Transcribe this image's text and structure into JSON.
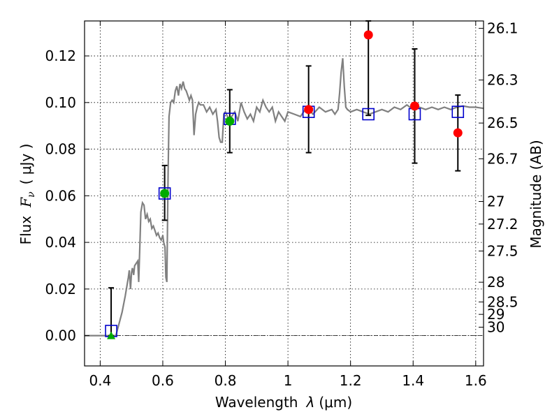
{
  "chart_data": {
    "type": "scatter",
    "xlabel_text": "Wavelength",
    "xlabel_symbol": "λ",
    "xlabel_unit": "(μm)",
    "ylabel_text": "Flux",
    "ylabel_symbol": "F",
    "ylabel_sub": "ν",
    "ylabel_unit": "( μJy )",
    "y2label": "Magnitude (AB)",
    "xlim": [
      0.35,
      1.625
    ],
    "ylim": [
      -0.013,
      0.135
    ],
    "grid": true,
    "x_ticks": [
      {
        "v": 0.4,
        "label": "0.4"
      },
      {
        "v": 0.6,
        "label": "0.6"
      },
      {
        "v": 0.8,
        "label": "0.8"
      },
      {
        "v": 1.0,
        "label": "1"
      },
      {
        "v": 1.2,
        "label": "1.2"
      },
      {
        "v": 1.4,
        "label": "1.4"
      },
      {
        "v": 1.6,
        "label": "1.6"
      }
    ],
    "y_ticks": [
      {
        "v": 0.0,
        "label": "0.00"
      },
      {
        "v": 0.02,
        "label": "0.02"
      },
      {
        "v": 0.04,
        "label": "0.04"
      },
      {
        "v": 0.06,
        "label": "0.06"
      },
      {
        "v": 0.08,
        "label": "0.08"
      },
      {
        "v": 0.1,
        "label": "0.10"
      },
      {
        "v": 0.12,
        "label": "0.12"
      }
    ],
    "mag_ticks": [
      {
        "mag": 26.1,
        "label": "26.1"
      },
      {
        "mag": 26.3,
        "label": "26.3"
      },
      {
        "mag": 26.5,
        "label": "26.5"
      },
      {
        "mag": 26.7,
        "label": "26.7"
      },
      {
        "mag": 27.0,
        "label": "27"
      },
      {
        "mag": 27.2,
        "label": "27.2"
      },
      {
        "mag": 27.5,
        "label": "27.5"
      },
      {
        "mag": 28.0,
        "label": "28"
      },
      {
        "mag": 28.5,
        "label": "28.5"
      },
      {
        "mag": 29.0,
        "label": "29"
      },
      {
        "mag": 30.0,
        "label": "30"
      }
    ],
    "model_spectrum": {
      "color": "#808080",
      "points": [
        [
          0.35,
          0.0
        ],
        [
          0.44,
          0.0
        ],
        [
          0.45,
          0.0
        ],
        [
          0.47,
          0.01
        ],
        [
          0.48,
          0.017
        ],
        [
          0.49,
          0.025
        ],
        [
          0.493,
          0.028
        ],
        [
          0.497,
          0.02
        ],
        [
          0.5,
          0.027
        ],
        [
          0.503,
          0.029
        ],
        [
          0.507,
          0.026
        ],
        [
          0.51,
          0.03
        ],
        [
          0.515,
          0.031
        ],
        [
          0.52,
          0.032
        ],
        [
          0.523,
          0.023
        ],
        [
          0.527,
          0.04
        ],
        [
          0.53,
          0.053
        ],
        [
          0.535,
          0.057
        ],
        [
          0.54,
          0.056
        ],
        [
          0.545,
          0.05
        ],
        [
          0.55,
          0.052
        ],
        [
          0.555,
          0.049
        ],
        [
          0.56,
          0.05
        ],
        [
          0.565,
          0.046
        ],
        [
          0.57,
          0.047
        ],
        [
          0.575,
          0.045
        ],
        [
          0.58,
          0.043
        ],
        [
          0.585,
          0.044
        ],
        [
          0.59,
          0.042
        ],
        [
          0.595,
          0.041
        ],
        [
          0.6,
          0.043
        ],
        [
          0.603,
          0.04
        ],
        [
          0.607,
          0.038
        ],
        [
          0.61,
          0.025
        ],
        [
          0.613,
          0.023
        ],
        [
          0.617,
          0.07
        ],
        [
          0.62,
          0.094
        ],
        [
          0.625,
          0.1
        ],
        [
          0.63,
          0.101
        ],
        [
          0.635,
          0.1
        ],
        [
          0.64,
          0.105
        ],
        [
          0.645,
          0.107
        ],
        [
          0.65,
          0.103
        ],
        [
          0.655,
          0.108
        ],
        [
          0.66,
          0.106
        ],
        [
          0.665,
          0.109
        ],
        [
          0.67,
          0.106
        ],
        [
          0.675,
          0.105
        ],
        [
          0.68,
          0.103
        ],
        [
          0.685,
          0.101
        ],
        [
          0.69,
          0.103
        ],
        [
          0.695,
          0.101
        ],
        [
          0.7,
          0.086
        ],
        [
          0.705,
          0.095
        ],
        [
          0.71,
          0.098
        ],
        [
          0.715,
          0.1
        ],
        [
          0.72,
          0.099
        ],
        [
          0.73,
          0.099
        ],
        [
          0.74,
          0.096
        ],
        [
          0.75,
          0.098
        ],
        [
          0.76,
          0.095
        ],
        [
          0.77,
          0.097
        ],
        [
          0.775,
          0.092
        ],
        [
          0.78,
          0.085
        ],
        [
          0.785,
          0.083
        ],
        [
          0.79,
          0.083
        ],
        [
          0.795,
          0.095
        ],
        [
          0.8,
          0.096
        ],
        [
          0.81,
          0.093
        ],
        [
          0.82,
          0.094
        ],
        [
          0.83,
          0.096
        ],
        [
          0.84,
          0.092
        ],
        [
          0.85,
          0.1
        ],
        [
          0.86,
          0.096
        ],
        [
          0.87,
          0.093
        ],
        [
          0.88,
          0.095
        ],
        [
          0.89,
          0.092
        ],
        [
          0.9,
          0.098
        ],
        [
          0.91,
          0.096
        ],
        [
          0.92,
          0.101
        ],
        [
          0.93,
          0.098
        ],
        [
          0.94,
          0.096
        ],
        [
          0.95,
          0.098
        ],
        [
          0.96,
          0.092
        ],
        [
          0.97,
          0.096
        ],
        [
          0.98,
          0.094
        ],
        [
          0.99,
          0.092
        ],
        [
          1.0,
          0.096
        ],
        [
          1.02,
          0.095
        ],
        [
          1.04,
          0.094
        ],
        [
          1.06,
          0.098
        ],
        [
          1.08,
          0.095
        ],
        [
          1.1,
          0.098
        ],
        [
          1.12,
          0.096
        ],
        [
          1.14,
          0.097
        ],
        [
          1.15,
          0.095
        ],
        [
          1.16,
          0.097
        ],
        [
          1.165,
          0.104
        ],
        [
          1.17,
          0.113
        ],
        [
          1.175,
          0.119
        ],
        [
          1.18,
          0.107
        ],
        [
          1.185,
          0.098
        ],
        [
          1.19,
          0.097
        ],
        [
          1.2,
          0.096
        ],
        [
          1.22,
          0.097
        ],
        [
          1.24,
          0.096
        ],
        [
          1.26,
          0.095
        ],
        [
          1.28,
          0.096
        ],
        [
          1.3,
          0.097
        ],
        [
          1.32,
          0.096
        ],
        [
          1.34,
          0.098
        ],
        [
          1.36,
          0.097
        ],
        [
          1.38,
          0.099
        ],
        [
          1.4,
          0.097
        ],
        [
          1.42,
          0.098
        ],
        [
          1.44,
          0.097
        ],
        [
          1.46,
          0.098
        ],
        [
          1.48,
          0.097
        ],
        [
          1.5,
          0.098
        ],
        [
          1.52,
          0.097
        ],
        [
          1.54,
          0.098
        ],
        [
          1.56,
          0.0985
        ],
        [
          1.58,
          0.098
        ],
        [
          1.6,
          0.098
        ],
        [
          1.625,
          0.0975
        ]
      ]
    },
    "model_points": {
      "color": "#0000cc",
      "points": [
        [
          0.435,
          0.002
        ],
        [
          0.606,
          0.061
        ],
        [
          0.814,
          0.093
        ],
        [
          1.066,
          0.096
        ],
        [
          1.257,
          0.095
        ],
        [
          1.405,
          0.095
        ],
        [
          1.543,
          0.096
        ]
      ]
    },
    "observations": [
      {
        "x": 0.435,
        "y": 0.0,
        "err_low": 0.0,
        "err_high": 0.0205,
        "marker": "triangle",
        "color": "#00aa00"
      },
      {
        "x": 0.606,
        "y": 0.061,
        "err_low": 0.0495,
        "err_high": 0.073,
        "marker": "circle",
        "color": "#00aa00"
      },
      {
        "x": 0.814,
        "y": 0.092,
        "err_low": 0.0785,
        "err_high": 0.1055,
        "marker": "circle",
        "color": "#00aa00"
      },
      {
        "x": 1.066,
        "y": 0.097,
        "err_low": 0.0785,
        "err_high": 0.1157,
        "marker": "circle",
        "color": "#ff0000"
      },
      {
        "x": 1.257,
        "y": 0.129,
        "err_low": 0.0945,
        "err_high": 0.135,
        "marker": "circle",
        "color": "#ff0000"
      },
      {
        "x": 1.405,
        "y": 0.0985,
        "err_low": 0.074,
        "err_high": 0.123,
        "marker": "circle",
        "color": "#ff0000"
      },
      {
        "x": 1.543,
        "y": 0.087,
        "err_low": 0.0707,
        "err_high": 0.1032,
        "marker": "circle",
        "color": "#ff0000"
      }
    ]
  }
}
